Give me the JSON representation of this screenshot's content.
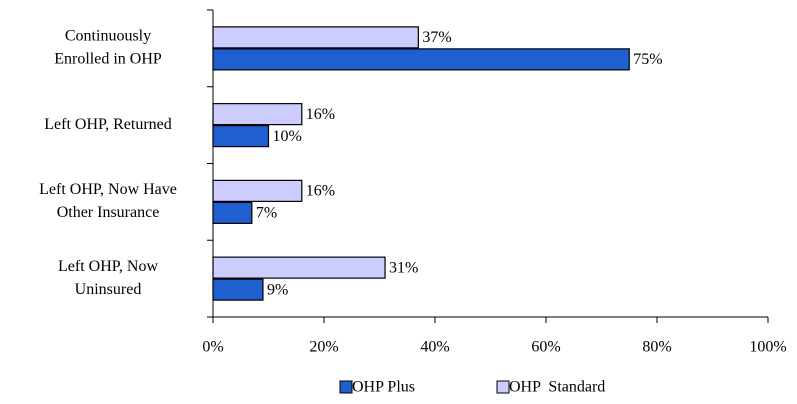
{
  "chart_data": {
    "type": "hbar",
    "categories": [
      [
        "Continuously",
        "Enrolled in OHP"
      ],
      [
        "Left OHP, Returned"
      ],
      [
        "Left OHP, Now Have",
        "Other Insurance"
      ],
      [
        "Left OHP, Now",
        "Uninsured"
      ]
    ],
    "series": [
      {
        "name": "OHP Plus",
        "color": "#1f5fcf",
        "values": [
          75,
          10,
          7,
          9
        ],
        "value_labels": [
          "75%",
          "10%",
          "7%",
          "9%"
        ]
      },
      {
        "name": "OHP  Standard",
        "color": "#ccccff",
        "values": [
          37,
          16,
          16,
          31
        ],
        "value_labels": [
          "37%",
          "16%",
          "16%",
          "31%"
        ]
      }
    ],
    "xlim": [
      0,
      100
    ],
    "xticks": [
      {
        "value": 0,
        "label": "0%"
      },
      {
        "value": 20,
        "label": "20%"
      },
      {
        "value": 40,
        "label": "40%"
      },
      {
        "value": 60,
        "label": "60%"
      },
      {
        "value": 80,
        "label": "80%"
      },
      {
        "value": 100,
        "label": "100%"
      }
    ],
    "legend": "bottom"
  }
}
